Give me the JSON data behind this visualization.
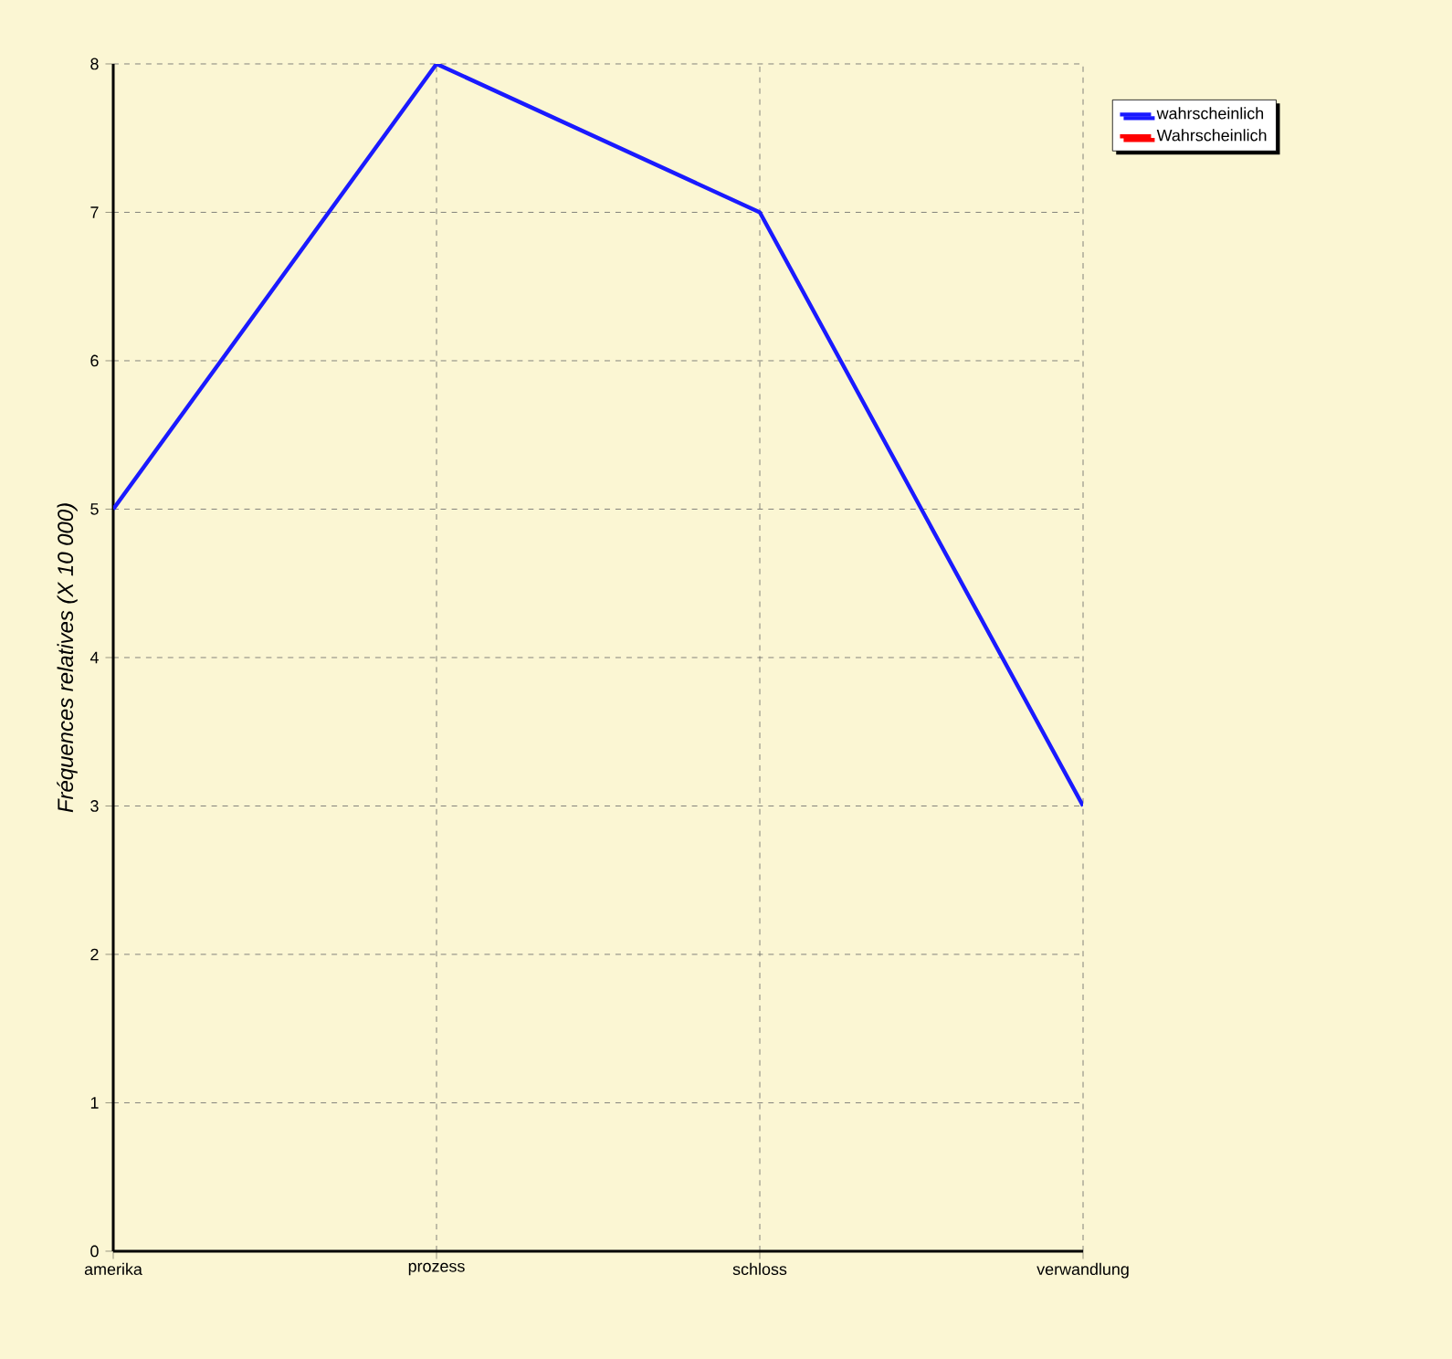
{
  "chart_data": {
    "type": "line",
    "ylabel": "Fréquences relatives (X 10 000)",
    "categories": [
      "amerika",
      "prozess",
      "schloss",
      "verwandlung"
    ],
    "series": [
      {
        "name": "wahrscheinlich",
        "color": "#1a1aff",
        "values": [
          5,
          8,
          7,
          3
        ]
      },
      {
        "name": "Wahrscheinlich",
        "color": "#ff0000",
        "values": [
          null,
          null,
          null,
          null
        ]
      }
    ],
    "ylim": [
      0,
      8
    ],
    "yticks": [
      0,
      1,
      2,
      3,
      4,
      5,
      6,
      7,
      8
    ],
    "grid": true,
    "legend": "top right",
    "marker": "none",
    "line_style": "solid"
  }
}
